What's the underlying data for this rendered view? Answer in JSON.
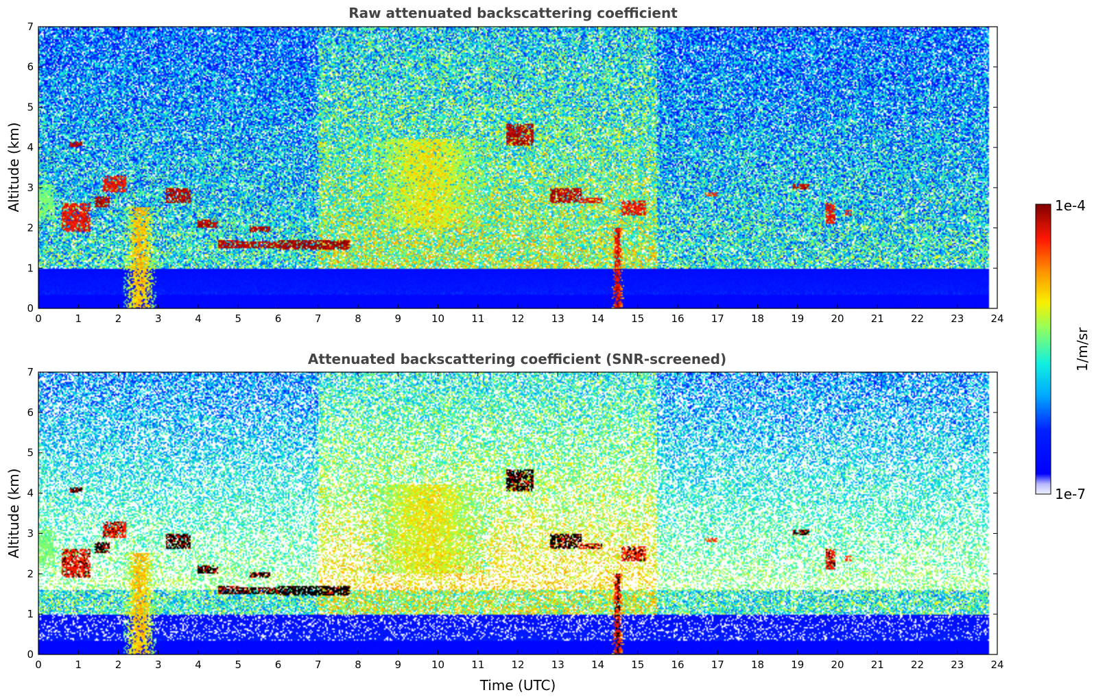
{
  "chart_data": [
    {
      "type": "heatmap",
      "title": "Raw attenuated backscattering coefficient",
      "xlabel": "",
      "ylabel": "Altitude (km)",
      "xlim": [
        0,
        24
      ],
      "ylim": [
        0,
        7
      ],
      "xticks": [
        "0",
        "1",
        "2",
        "3",
        "4",
        "5",
        "6",
        "7",
        "8",
        "9",
        "10",
        "11",
        "12",
        "13",
        "14",
        "15",
        "16",
        "17",
        "18",
        "19",
        "20",
        "21",
        "22",
        "23",
        "24"
      ],
      "yticks": [
        "0",
        "1",
        "2",
        "3",
        "4",
        "5",
        "6",
        "7"
      ],
      "data_end_hour": 23.8,
      "noise_floor": "visible",
      "cloud_layers": [
        {
          "t_start": 0.0,
          "t_end": 0.4,
          "alt_low": 2.2,
          "alt_high": 3.1,
          "intensity": 0.55
        },
        {
          "t_start": 0.8,
          "t_end": 1.1,
          "alt_low": 4.0,
          "alt_high": 4.15,
          "intensity": 0.95
        },
        {
          "t_start": 0.6,
          "t_end": 1.3,
          "alt_low": 1.9,
          "alt_high": 2.6,
          "intensity": 0.9
        },
        {
          "t_start": 1.4,
          "t_end": 1.8,
          "alt_low": 2.5,
          "alt_high": 2.8,
          "intensity": 0.95
        },
        {
          "t_start": 1.6,
          "t_end": 2.2,
          "alt_low": 2.9,
          "alt_high": 3.3,
          "intensity": 0.9
        },
        {
          "t_start": 3.2,
          "t_end": 3.8,
          "alt_low": 2.6,
          "alt_high": 3.0,
          "intensity": 0.95
        },
        {
          "t_start": 4.0,
          "t_end": 4.5,
          "alt_low": 2.0,
          "alt_high": 2.2,
          "intensity": 0.95
        },
        {
          "t_start": 4.5,
          "t_end": 5.0,
          "alt_low": 1.5,
          "alt_high": 1.7,
          "intensity": 0.95
        },
        {
          "t_start": 5.0,
          "t_end": 6.0,
          "alt_low": 1.5,
          "alt_high": 1.65,
          "intensity": 0.95
        },
        {
          "t_start": 5.3,
          "t_end": 5.8,
          "alt_low": 1.9,
          "alt_high": 2.05,
          "intensity": 0.95
        },
        {
          "t_start": 6.0,
          "t_end": 7.8,
          "alt_low": 1.45,
          "alt_high": 1.7,
          "intensity": 0.97
        },
        {
          "t_start": 11.7,
          "t_end": 12.4,
          "alt_low": 4.05,
          "alt_high": 4.6,
          "intensity": 0.95
        },
        {
          "t_start": 12.8,
          "t_end": 13.6,
          "alt_low": 2.6,
          "alt_high": 3.0,
          "intensity": 0.95
        },
        {
          "t_start": 13.5,
          "t_end": 14.1,
          "alt_low": 2.6,
          "alt_high": 2.75,
          "intensity": 0.9
        },
        {
          "t_start": 14.6,
          "t_end": 15.2,
          "alt_low": 2.3,
          "alt_high": 2.7,
          "intensity": 0.9
        },
        {
          "t_start": 16.7,
          "t_end": 17.0,
          "alt_low": 2.8,
          "alt_high": 2.9,
          "intensity": 0.85
        },
        {
          "t_start": 18.9,
          "t_end": 19.3,
          "alt_low": 2.95,
          "alt_high": 3.1,
          "intensity": 0.95
        },
        {
          "t_start": 19.7,
          "t_end": 19.95,
          "alt_low": 2.1,
          "alt_high": 2.6,
          "intensity": 0.9
        },
        {
          "t_start": 20.2,
          "t_end": 20.35,
          "alt_low": 2.3,
          "alt_high": 2.45,
          "intensity": 0.85
        }
      ],
      "dust_plumes": [
        {
          "t_start": 2.1,
          "t_end": 3.0,
          "alt_low": 0.0,
          "alt_high": 2.5,
          "intensity": 0.65
        },
        {
          "t_start": 14.35,
          "t_end": 14.65,
          "alt_low": 0.0,
          "alt_high": 2.0,
          "intensity": 0.85
        },
        {
          "t_start": 8.0,
          "t_end": 11.5,
          "alt_low": 2.0,
          "alt_high": 4.2,
          "intensity": 0.6
        }
      ]
    },
    {
      "type": "heatmap",
      "title": "Attenuated backscattering coefficient (SNR-screened)",
      "xlabel": "Time (UTC)",
      "ylabel": "Altitude (km)",
      "xlim": [
        0,
        24
      ],
      "ylim": [
        0,
        7
      ],
      "xticks": [
        "0",
        "1",
        "2",
        "3",
        "4",
        "5",
        "6",
        "7",
        "8",
        "9",
        "10",
        "11",
        "12",
        "13",
        "14",
        "15",
        "16",
        "17",
        "18",
        "19",
        "20",
        "21",
        "22",
        "23",
        "24"
      ],
      "yticks": [
        "0",
        "1",
        "2",
        "3",
        "4",
        "5",
        "6",
        "7"
      ],
      "data_end_hour": 23.8,
      "noise_floor": "screened",
      "saturated_color": "#000000"
    }
  ],
  "colorbar": {
    "label": "1/m/sr",
    "max_label": "1e-4",
    "min_label": "1e-7",
    "colormap": "jet",
    "scale": "log"
  },
  "colors": {
    "background": "#ffffff",
    "title_text": "#444444",
    "saturated": "#000000"
  }
}
